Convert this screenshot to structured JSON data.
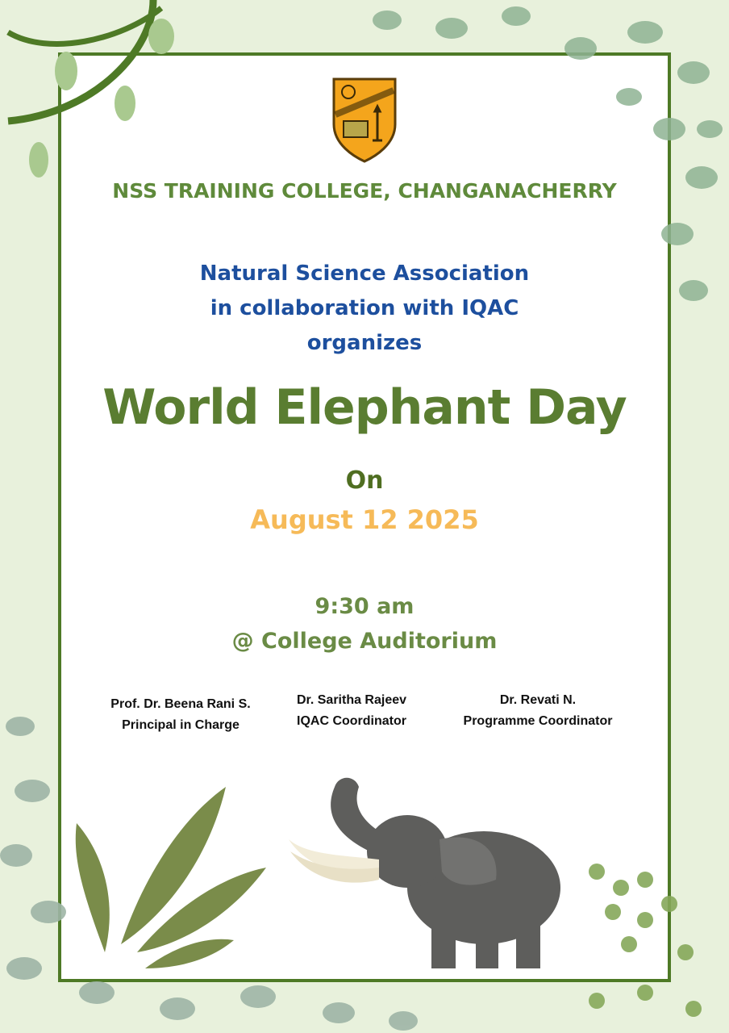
{
  "college_name": "NSS TRAINING COLLEGE, CHANGANACHERRY",
  "organizer": {
    "line1": "Natural Science Association",
    "line2": "in collaboration with IQAC",
    "line3": "organizes"
  },
  "event_title": "World Elephant Day",
  "on_label": "On",
  "date": "August 12 2025",
  "time": "9:30 am",
  "venue": "@ College Auditorium",
  "signatories": [
    {
      "name": "Prof. Dr. Beena Rani S.",
      "role": "Principal in Charge"
    },
    {
      "name": "Dr. Saritha Rajeev",
      "role": "IQAC Coordinator"
    },
    {
      "name": "Dr. Revati N.",
      "role": "Programme Coordinator"
    }
  ],
  "colors": {
    "frame": "#4e7a26",
    "background": "#e8f1dc",
    "title_green": "#5a7d31",
    "blue": "#1d4f9e",
    "date_orange": "#f6ba58"
  },
  "icons": [
    "college-crest-logo",
    "elephant-illustration",
    "leaf-decoration"
  ]
}
